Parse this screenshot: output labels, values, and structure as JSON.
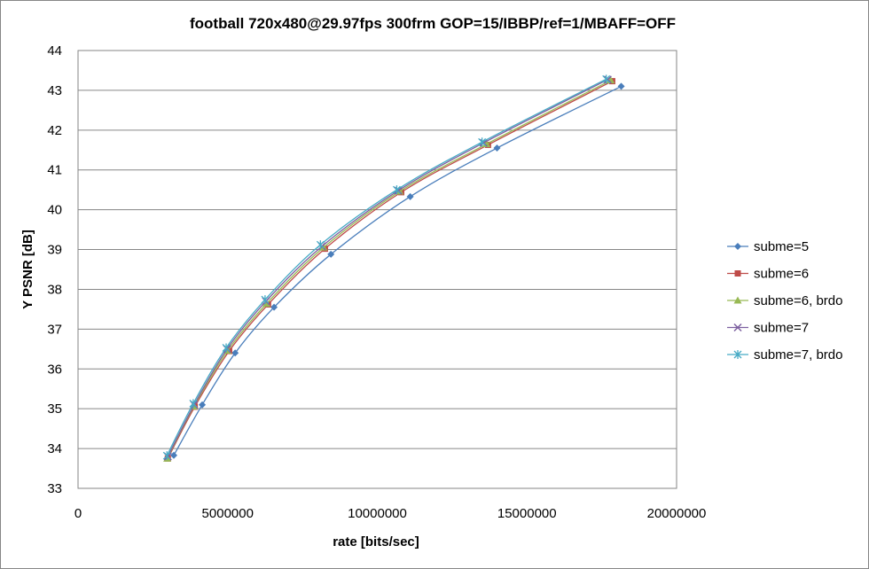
{
  "chart_data": {
    "type": "scatter",
    "title": "football 720x480@29.97fps  300frm GOP=15/IBBP/ref=1/MBAFF=OFF",
    "xlabel": "rate [bits/sec]",
    "ylabel": "Y PSNR [dB]",
    "xlim": [
      0,
      20000000
    ],
    "ylim": [
      33,
      44
    ],
    "x_ticks": [
      "0",
      "5000000",
      "10000000",
      "15000000",
      "20000000"
    ],
    "y_ticks": [
      "33",
      "34",
      "35",
      "36",
      "37",
      "38",
      "39",
      "40",
      "41",
      "42",
      "43",
      "44"
    ],
    "grid": "horizontal",
    "legend_position": "right",
    "series": [
      {
        "name": "subme=5",
        "color": "#4a7ebb",
        "marker": "diamond",
        "x": [
          3200000,
          4150000,
          5250000,
          6550000,
          8450000,
          11100000,
          14000000,
          18150000
        ],
        "y": [
          33.83,
          35.1,
          36.4,
          37.55,
          38.88,
          40.33,
          41.55,
          43.1
        ]
      },
      {
        "name": "subme=6",
        "color": "#be4b48",
        "marker": "square",
        "x": [
          3000000,
          3900000,
          5050000,
          6350000,
          8250000,
          10800000,
          13700000,
          17850000
        ],
        "y": [
          33.75,
          35.05,
          36.45,
          37.62,
          39.02,
          40.44,
          41.63,
          43.23
        ]
      },
      {
        "name": "subme=6, brdo",
        "color": "#98b954",
        "marker": "triangle",
        "x": [
          2980000,
          3870000,
          5000000,
          6300000,
          8200000,
          10750000,
          13650000,
          17800000
        ],
        "y": [
          33.75,
          35.06,
          36.46,
          37.64,
          39.05,
          40.46,
          41.65,
          43.25
        ]
      },
      {
        "name": "subme=7",
        "color": "#7d60a0",
        "marker": "x",
        "x": [
          3000000,
          3880000,
          4980000,
          6280000,
          8150000,
          10700000,
          13550000,
          17700000
        ],
        "y": [
          33.8,
          35.1,
          36.5,
          37.7,
          39.08,
          40.48,
          41.68,
          43.27
        ]
      },
      {
        "name": "subme=7, brdo",
        "color": "#46aac5",
        "marker": "star",
        "x": [
          2970000,
          3850000,
          4950000,
          6250000,
          8100000,
          10650000,
          13500000,
          17650000
        ],
        "y": [
          33.82,
          35.13,
          36.53,
          37.74,
          39.12,
          40.5,
          41.7,
          43.28
        ]
      }
    ]
  }
}
